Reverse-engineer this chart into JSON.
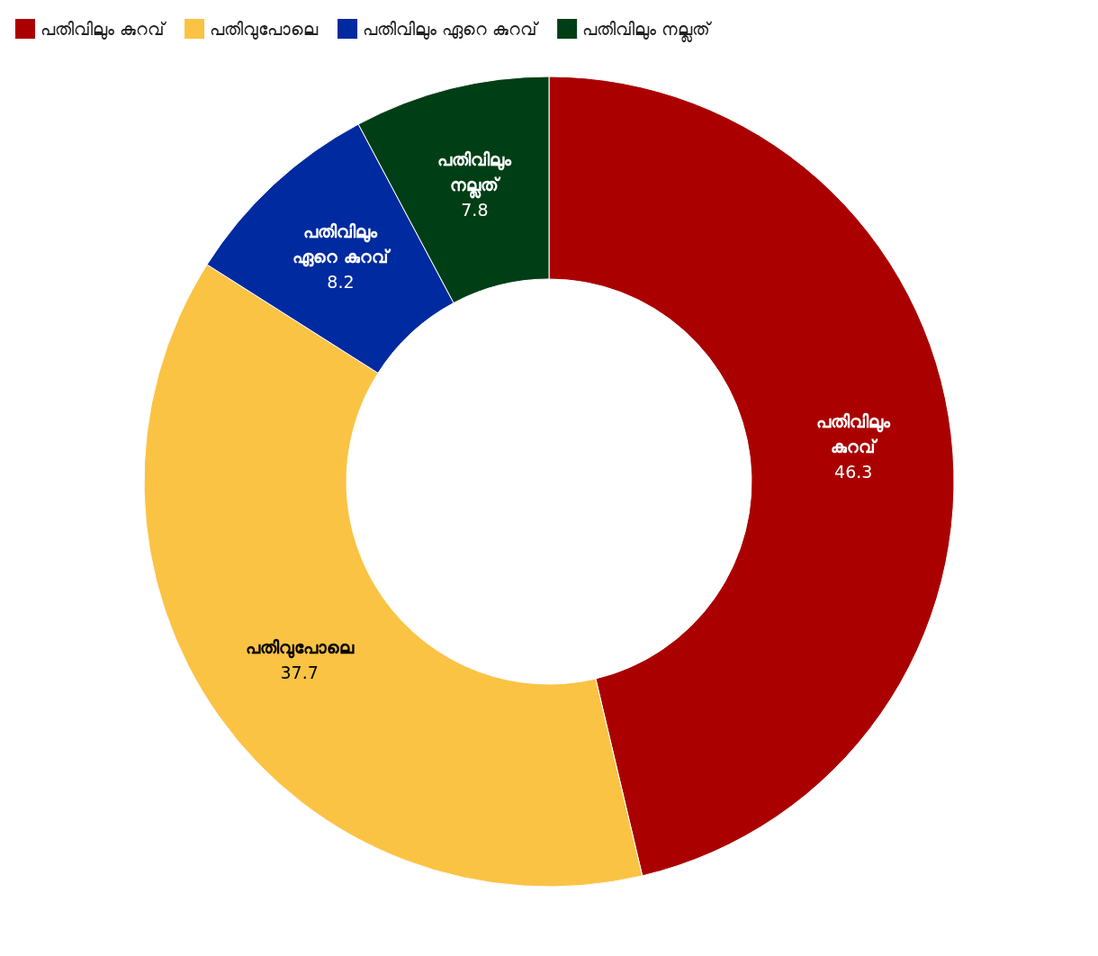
{
  "chart_data": {
    "type": "donut",
    "categories": [
      "പതിവിലും കുറവ്",
      "പതിവുപോലെ",
      "പതിവിലും ഏറെ കുറവ്",
      "പതിവിലും നല്ലത്"
    ],
    "values": [
      46.3,
      37.7,
      8.2,
      7.8
    ],
    "colors": [
      "#aa0000",
      "#fbc344",
      "#002a9f",
      "#003e16"
    ],
    "data_labels": true,
    "legend": "top left"
  }
}
